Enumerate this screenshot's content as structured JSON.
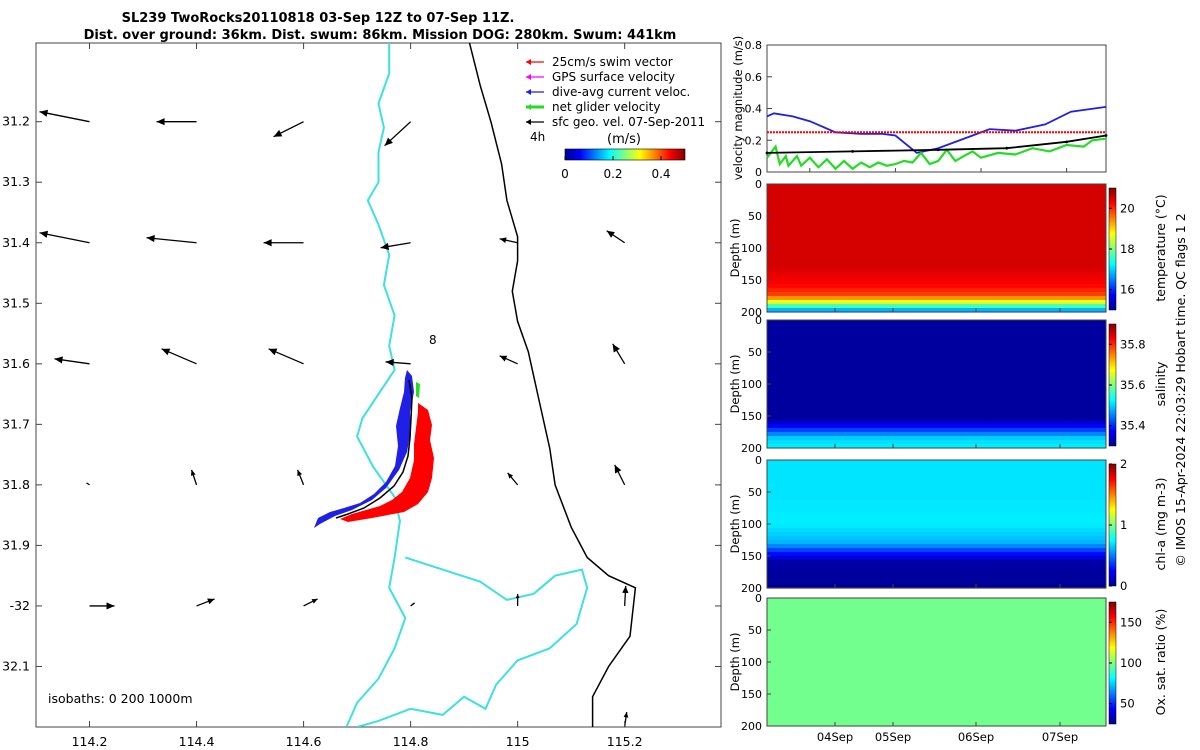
{
  "title_line1": "SL239 TwoRocks20110818 03-Sep 12Z to 07-Sep 11Z.",
  "title_line2": "Dist. over ground: 36km. Dist. swum: 86km. Mission DOG: 280km. Swum: 441km",
  "colors": {
    "swim": "#ff0000",
    "gps": "#ff00ff",
    "dac": "#1f1fe6",
    "net": "#22dd22",
    "sfc": "#000000",
    "coast": "#000000",
    "isobath": "#3ee0e0"
  },
  "chart_data": [
    {
      "type": "map",
      "name": "track-map",
      "xlim": [
        114.1,
        115.38
      ],
      "ylim": [
        -32.2,
        -31.07
      ],
      "xticks": [
        114.2,
        114.4,
        114.6,
        114.8,
        115,
        115.2
      ],
      "xtick_labels": [
        "114.2",
        "114.4",
        "114.6",
        "114.8",
        "115",
        "115.2"
      ],
      "yticks": [
        -31.2,
        -31.3,
        -31.4,
        -31.5,
        -31.6,
        -31.7,
        -31.8,
        -31.9,
        -32,
        -32.1
      ],
      "ytick_labels": [
        "31.2",
        "31.3",
        "31.4",
        "31.5",
        "31.6",
        "31.7",
        "31.8",
        "31.9",
        "-32",
        "32.1"
      ],
      "legend": [
        {
          "label": "25cm/s swim vector",
          "color": "#ff0000"
        },
        {
          "label": "GPS surface velocity",
          "color": "#ff00ff"
        },
        {
          "label": "dive-avg current veloc.",
          "color": "#1f1fe6"
        },
        {
          "label": "net glider velocity",
          "color": "#22dd22"
        },
        {
          "label": "sfc geo. vel. 07-Sep-2011",
          "color": "#000000"
        }
      ],
      "legend_note": "4h",
      "colorbar": {
        "label": "(m/s)",
        "range": [
          0,
          0.5
        ],
        "ticks": [
          0,
          0.2,
          0.4
        ],
        "tick_labels": [
          "0",
          "0.2",
          "0.4"
        ]
      },
      "isobaths_label": "isobaths: 0   200   1000m",
      "annotation": {
        "text": "8",
        "lon": 114.83,
        "lat": -31.595
      },
      "sfc_arrows": [
        {
          "lon": 114.2,
          "lat": -31.2,
          "u": -0.5,
          "v": 0.1
        },
        {
          "lon": 114.4,
          "lat": -31.2,
          "u": -0.4,
          "v": 0.0
        },
        {
          "lon": 114.6,
          "lat": -31.2,
          "u": -0.3,
          "v": -0.15
        },
        {
          "lon": 114.8,
          "lat": -31.2,
          "u": -0.26,
          "v": -0.24
        },
        {
          "lon": 114.2,
          "lat": -31.4,
          "u": -0.5,
          "v": 0.1
        },
        {
          "lon": 114.4,
          "lat": -31.4,
          "u": -0.5,
          "v": 0.05
        },
        {
          "lon": 114.6,
          "lat": -31.4,
          "u": -0.4,
          "v": 0.0
        },
        {
          "lon": 114.8,
          "lat": -31.4,
          "u": -0.3,
          "v": -0.05
        },
        {
          "lon": 115,
          "lat": -31.4,
          "u": -0.18,
          "v": 0.04
        },
        {
          "lon": 115.2,
          "lat": -31.4,
          "u": -0.18,
          "v": 0.12
        },
        {
          "lon": 114.2,
          "lat": -31.6,
          "u": -0.35,
          "v": 0.05
        },
        {
          "lon": 114.4,
          "lat": -31.6,
          "u": -0.35,
          "v": 0.15
        },
        {
          "lon": 114.6,
          "lat": -31.6,
          "u": -0.35,
          "v": 0.15
        },
        {
          "lon": 114.8,
          "lat": -31.6,
          "u": -0.25,
          "v": 0.02
        },
        {
          "lon": 115,
          "lat": -31.6,
          "u": -0.18,
          "v": 0.08
        },
        {
          "lon": 115.2,
          "lat": -31.6,
          "u": -0.12,
          "v": 0.2
        },
        {
          "lon": 114.2,
          "lat": -31.8,
          "u": -0.03,
          "v": 0.02
        },
        {
          "lon": 114.4,
          "lat": -31.8,
          "u": -0.05,
          "v": 0.15
        },
        {
          "lon": 114.6,
          "lat": -31.8,
          "u": -0.06,
          "v": 0.15
        },
        {
          "lon": 115,
          "lat": -31.8,
          "u": -0.1,
          "v": 0.12
        },
        {
          "lon": 115.2,
          "lat": -31.8,
          "u": -0.1,
          "v": 0.2
        },
        {
          "lon": 114.2,
          "lat": -32,
          "u": 0.25,
          "v": 0.0
        },
        {
          "lon": 114.4,
          "lat": -32,
          "u": 0.18,
          "v": 0.07
        },
        {
          "lon": 114.6,
          "lat": -32,
          "u": 0.14,
          "v": 0.07
        },
        {
          "lon": 114.8,
          "lat": -32,
          "u": 0.04,
          "v": 0.03
        },
        {
          "lon": 115,
          "lat": -32,
          "u": 0.0,
          "v": 0.12
        },
        {
          "lon": 115.2,
          "lat": -32,
          "u": 0.01,
          "v": 0.2
        },
        {
          "lon": 115.2,
          "lat": -32.2,
          "u": 0.02,
          "v": 0.15
        }
      ],
      "coastline": [
        [
          114.91,
          -31.07
        ],
        [
          114.93,
          -31.14
        ],
        [
          114.95,
          -31.2
        ],
        [
          114.97,
          -31.27
        ],
        [
          114.98,
          -31.33
        ],
        [
          115.0,
          -31.39
        ],
        [
          115.0,
          -31.43
        ],
        [
          114.99,
          -31.48
        ],
        [
          115.0,
          -31.53
        ],
        [
          115.02,
          -31.58
        ],
        [
          115.04,
          -31.66
        ],
        [
          115.06,
          -31.74
        ],
        [
          115.07,
          -31.8
        ],
        [
          115.1,
          -31.87
        ],
        [
          115.13,
          -31.92
        ],
        [
          115.17,
          -31.95
        ],
        [
          115.22,
          -31.97
        ],
        [
          115.21,
          -32.05
        ],
        [
          115.17,
          -32.1
        ],
        [
          115.14,
          -32.15
        ],
        [
          115.14,
          -32.2
        ]
      ],
      "isobaths": [
        [
          [
            114.76,
            -31.07
          ],
          [
            114.76,
            -31.12
          ],
          [
            114.74,
            -31.17
          ],
          [
            114.75,
            -31.21
          ],
          [
            114.74,
            -31.25
          ],
          [
            114.74,
            -31.3
          ],
          [
            114.72,
            -31.33
          ],
          [
            114.74,
            -31.37
          ],
          [
            114.76,
            -31.42
          ],
          [
            114.75,
            -31.47
          ],
          [
            114.77,
            -31.52
          ],
          [
            114.76,
            -31.57
          ],
          [
            114.77,
            -31.61
          ],
          [
            114.74,
            -31.65
          ],
          [
            114.71,
            -31.69
          ],
          [
            114.7,
            -31.72
          ],
          [
            114.73,
            -31.77
          ],
          [
            114.77,
            -31.82
          ],
          [
            114.78,
            -31.86
          ],
          [
            114.77,
            -31.92
          ],
          [
            114.76,
            -31.97
          ],
          [
            114.79,
            -32.02
          ],
          [
            114.77,
            -32.07
          ],
          [
            114.74,
            -32.12
          ],
          [
            114.7,
            -32.16
          ],
          [
            114.68,
            -32.2
          ]
        ],
        [
          [
            114.79,
            -31.92
          ],
          [
            114.86,
            -31.94
          ],
          [
            114.93,
            -31.96
          ],
          [
            114.98,
            -31.99
          ],
          [
            115.03,
            -31.98
          ],
          [
            115.07,
            -31.95
          ],
          [
            115.12,
            -31.94
          ],
          [
            115.13,
            -31.97
          ],
          [
            115.11,
            -32.03
          ],
          [
            115.06,
            -32.07
          ],
          [
            115.0,
            -32.09
          ],
          [
            114.96,
            -32.13
          ],
          [
            114.94,
            -32.17
          ],
          [
            114.9,
            -32.15
          ],
          [
            114.86,
            -32.18
          ],
          [
            114.8,
            -32.17
          ],
          [
            114.74,
            -32.19
          ],
          [
            114.7,
            -32.2
          ]
        ]
      ]
    },
    {
      "type": "line",
      "name": "velocity-magnitude",
      "ylabel": "velocity magnitude (m/s)",
      "ylim": [
        0,
        0.8
      ],
      "yticks": [
        0,
        0.2,
        0.4,
        0.6,
        0.8
      ],
      "ytick_labels": [
        "0",
        "0.2",
        "0.4",
        "0.6",
        "0.8"
      ],
      "xlim": [
        3.5,
        7.46
      ],
      "series": [
        {
          "name": "dive-avg current veloc.",
          "color": "#1f1fe6",
          "x": [
            3.5,
            3.58,
            3.8,
            4.0,
            4.3,
            4.6,
            4.85,
            5.0,
            5.25,
            5.5,
            5.85,
            6.1,
            6.4,
            6.75,
            7.05,
            7.46
          ],
          "y": [
            0.35,
            0.37,
            0.35,
            0.32,
            0.25,
            0.24,
            0.24,
            0.23,
            0.12,
            0.15,
            0.22,
            0.27,
            0.26,
            0.3,
            0.38,
            0.41
          ]
        },
        {
          "name": "25cm/s swim vector",
          "color": "#ff0000",
          "x": [
            3.5,
            7.46
          ],
          "y": [
            0.25,
            0.25
          ]
        },
        {
          "name": "net glider velocity",
          "color": "#22dd22",
          "x": [
            3.5,
            3.6,
            3.65,
            3.72,
            3.75,
            3.85,
            3.9,
            4.0,
            4.1,
            4.2,
            4.3,
            4.4,
            4.5,
            4.6,
            4.7,
            4.8,
            4.9,
            5.0,
            5.1,
            5.2,
            5.3,
            5.4,
            5.5,
            5.6,
            5.7,
            5.8,
            5.9,
            6.0,
            6.2,
            6.4,
            6.6,
            6.8,
            7.0,
            7.2,
            7.3,
            7.46
          ],
          "y": [
            0.09,
            0.16,
            0.05,
            0.1,
            0.04,
            0.1,
            0.04,
            0.09,
            0.03,
            0.08,
            0.02,
            0.07,
            0.02,
            0.06,
            0.03,
            0.06,
            0.04,
            0.05,
            0.07,
            0.06,
            0.12,
            0.05,
            0.07,
            0.14,
            0.07,
            0.1,
            0.13,
            0.09,
            0.12,
            0.11,
            0.15,
            0.13,
            0.17,
            0.16,
            0.2,
            0.21
          ]
        },
        {
          "name": "sfc geo. vel.",
          "color": "#000000",
          "x": [
            3.5,
            4.5,
            5.5,
            6.3,
            7.0,
            7.46
          ],
          "y": [
            0.12,
            0.13,
            0.14,
            0.15,
            0.19,
            0.23
          ]
        }
      ]
    },
    {
      "type": "heatmap",
      "name": "temperature-section",
      "ylabel": "Depth (m)",
      "ylim": [
        0,
        200
      ],
      "yticks": [
        50,
        100,
        150,
        200
      ],
      "ytick_labels": [
        "50",
        "100",
        "150",
        "200"
      ],
      "xticks": [
        "04Sep",
        "05Sep",
        "06Sep",
        "07Sep"
      ],
      "colorbar": {
        "label": "temperature (°C)",
        "range": [
          15,
          21
        ],
        "ticks": [
          16,
          18,
          20
        ],
        "tick_labels": [
          "16",
          "18",
          "20"
        ]
      },
      "profile": [
        [
          0,
          20.5
        ],
        [
          130,
          20.5
        ],
        [
          160,
          20.2
        ],
        [
          175,
          19.8
        ],
        [
          185,
          18.5
        ],
        [
          195,
          17.0
        ],
        [
          200,
          16.5
        ]
      ]
    },
    {
      "type": "heatmap",
      "name": "salinity-section",
      "ylabel": "Depth (m)",
      "ylim": [
        0,
        200
      ],
      "yticks": [
        50,
        100,
        150,
        200
      ],
      "ytick_labels": [
        "50",
        "100",
        "150",
        "200"
      ],
      "xticks": [
        "04Sep",
        "05Sep",
        "06Sep",
        "07Sep"
      ],
      "colorbar": {
        "label": "salinity",
        "range": [
          35.3,
          35.9
        ],
        "ticks": [
          35.4,
          35.6,
          35.8
        ],
        "tick_labels": [
          "35.4",
          "35.6",
          "35.8"
        ]
      },
      "profile": [
        [
          0,
          35.31
        ],
        [
          155,
          35.31
        ],
        [
          170,
          35.4
        ],
        [
          185,
          35.5
        ],
        [
          200,
          35.52
        ]
      ]
    },
    {
      "type": "heatmap",
      "name": "chl-a-section",
      "ylabel": "Depth (m)",
      "ylim": [
        0,
        200
      ],
      "yticks": [
        50,
        100,
        150,
        200
      ],
      "ytick_labels": [
        "50",
        "100",
        "150",
        "200"
      ],
      "xticks": [
        "04Sep",
        "05Sep",
        "06Sep",
        "07Sep"
      ],
      "colorbar": {
        "label": "chl-a (mg m-3)",
        "range": [
          0,
          2
        ],
        "ticks": [
          0,
          1,
          2
        ],
        "tick_labels": [
          "0",
          "1",
          "2"
        ]
      },
      "profile": [
        [
          0,
          0.7
        ],
        [
          60,
          0.7
        ],
        [
          100,
          0.72
        ],
        [
          130,
          0.6
        ],
        [
          145,
          0.3
        ],
        [
          160,
          0.05
        ],
        [
          200,
          0.02
        ]
      ]
    },
    {
      "type": "heatmap",
      "name": "oxygen-section",
      "ylabel": "Depth (m)",
      "ylim": [
        0,
        200
      ],
      "yticks": [
        50,
        100,
        150,
        200
      ],
      "ytick_labels": [
        "50",
        "100",
        "150",
        "200"
      ],
      "xticks": [
        "04Sep",
        "05Sep",
        "06Sep",
        "07Sep"
      ],
      "colorbar": {
        "label": "Ox. sat. ratio (%)",
        "range": [
          25,
          175
        ],
        "ticks": [
          50,
          100,
          150
        ],
        "tick_labels": [
          "50",
          "100",
          "150"
        ]
      },
      "profile": [
        [
          0,
          98
        ],
        [
          200,
          98
        ]
      ]
    }
  ],
  "x_date_labels": [
    "04Sep",
    "05Sep",
    "06Sep",
    "07Sep"
  ],
  "credit": "© IMOS 15-Apr-2024 22:03:29 Hobart time. QC flags 1  2"
}
